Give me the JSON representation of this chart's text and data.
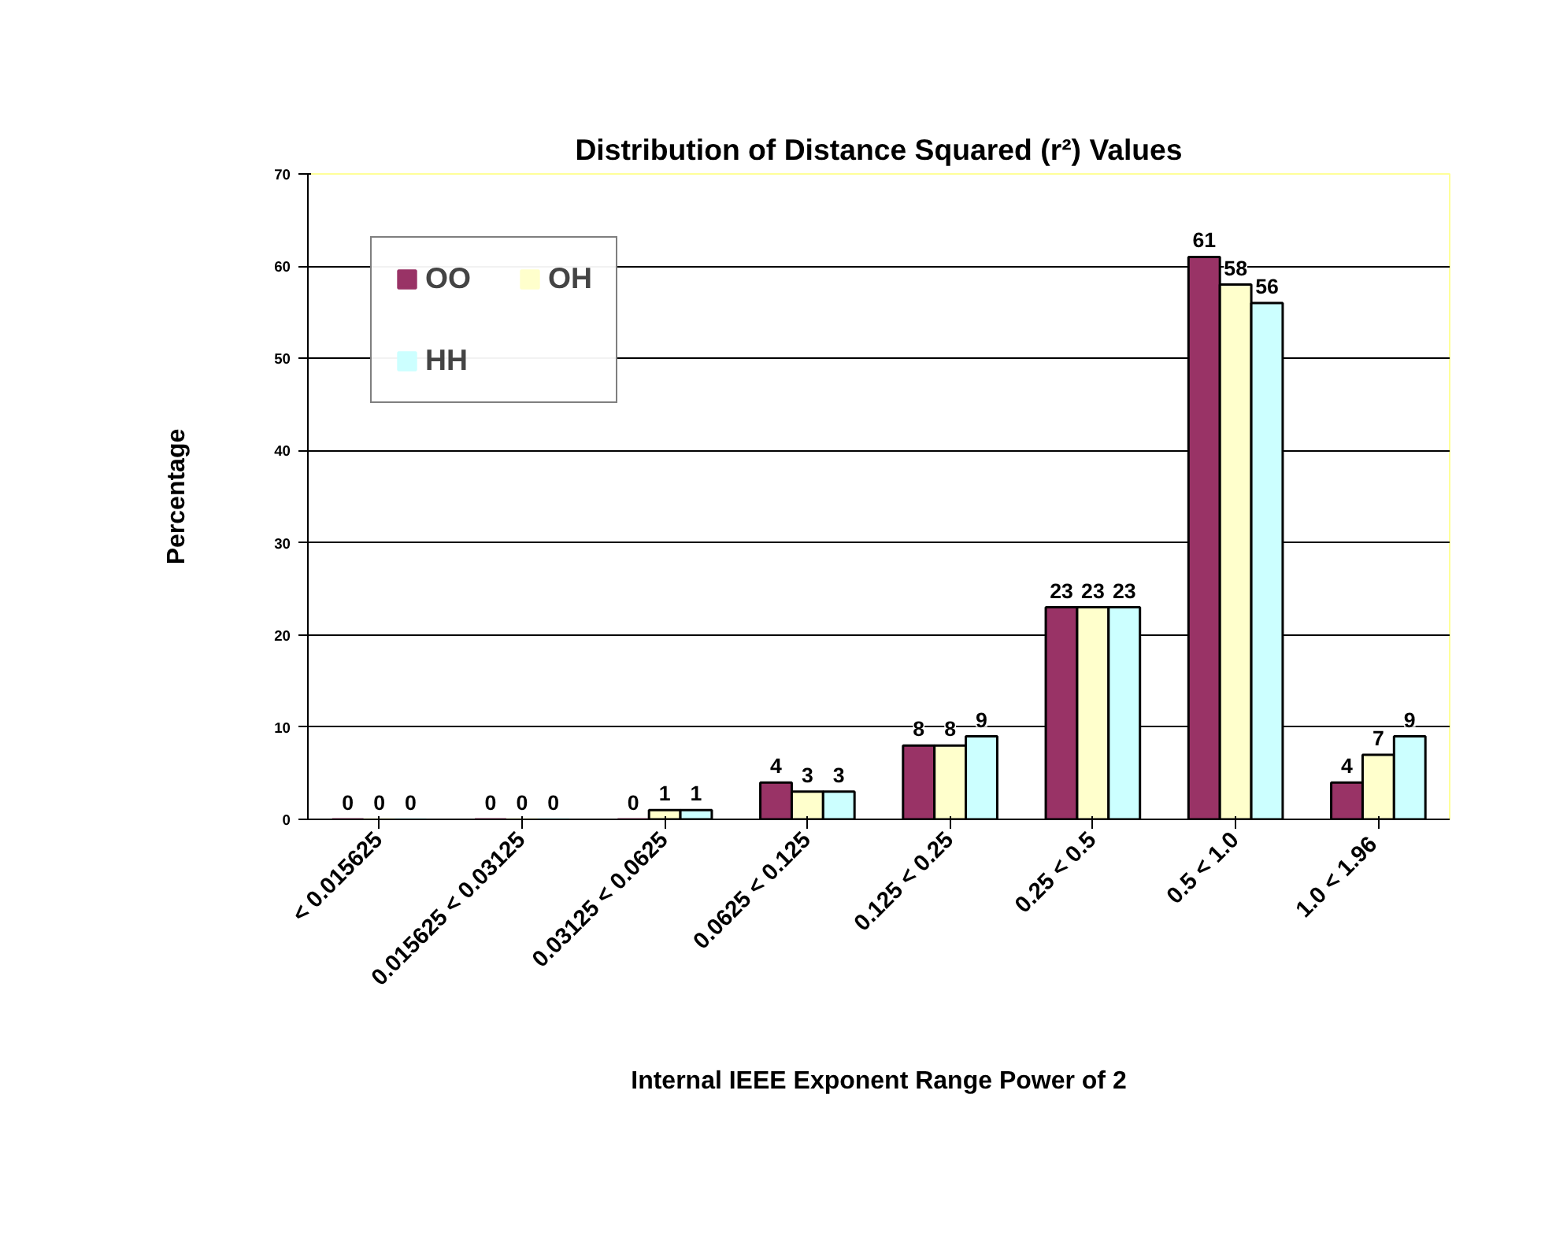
{
  "chart_data": {
    "type": "bar",
    "title": "Distribution of Distance Squared (r²) Values",
    "xlabel": "Internal IEEE Exponent Range Power of 2",
    "ylabel": "Percentage",
    "categories": [
      "< 0.015625",
      "0.015625 < 0.03125",
      "0.03125 < 0.0625",
      "0.0625 < 0.125",
      "0.125 < 0.25",
      "0.25 < 0.5",
      "0.5 < 1.0",
      "1.0  < 1.96"
    ],
    "series": [
      {
        "name": "OO",
        "color": "#993366",
        "values": [
          0,
          0,
          0,
          4,
          8,
          23,
          61,
          4
        ]
      },
      {
        "name": "OH",
        "color": "#ffffcc",
        "values": [
          0,
          0,
          1,
          3,
          8,
          23,
          58,
          7
        ]
      },
      {
        "name": "HH",
        "color": "#ccffff",
        "values": [
          0,
          0,
          1,
          3,
          9,
          23,
          56,
          9
        ]
      }
    ],
    "ylim": [
      0,
      70
    ],
    "yticks": [
      0,
      10,
      20,
      30,
      40,
      50,
      60,
      70
    ],
    "grid": "y",
    "legend": "top left",
    "data_labels": true
  }
}
